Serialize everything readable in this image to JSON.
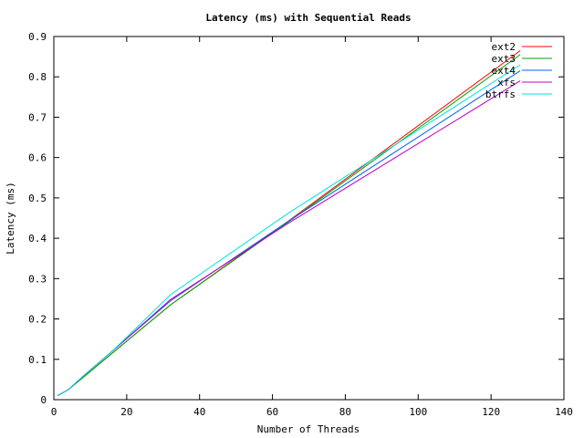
{
  "chart_data": {
    "type": "line",
    "title": "Latency (ms) with Sequential Reads",
    "xlabel": "Number of Threads",
    "ylabel": "Latency (ms)",
    "xlim": [
      0,
      140
    ],
    "ylim": [
      0,
      0.9
    ],
    "xticks": [
      "0",
      "20",
      "40",
      "60",
      "80",
      "100",
      "120",
      "140"
    ],
    "yticks": [
      "0",
      "0.1",
      "0.2",
      "0.3",
      "0.4",
      "0.5",
      "0.6",
      "0.7",
      "0.8",
      "0.9"
    ],
    "grid": false,
    "legend": "top-right",
    "series": [
      {
        "name": "ext2",
        "color": "#ff0000",
        "points": [
          [
            1,
            0.01
          ],
          [
            2,
            0.015
          ],
          [
            4,
            0.025
          ],
          [
            8,
            0.055
          ],
          [
            16,
            0.115
          ],
          [
            32,
            0.235
          ],
          [
            64,
            0.44
          ],
          [
            128,
            0.865
          ]
        ]
      },
      {
        "name": "ext3",
        "color": "#00a000",
        "points": [
          [
            1,
            0.01
          ],
          [
            2,
            0.015
          ],
          [
            4,
            0.025
          ],
          [
            8,
            0.055
          ],
          [
            16,
            0.115
          ],
          [
            32,
            0.235
          ],
          [
            64,
            0.438
          ],
          [
            128,
            0.855
          ]
        ]
      },
      {
        "name": "ext4",
        "color": "#0060ff",
        "points": [
          [
            1,
            0.01
          ],
          [
            2,
            0.015
          ],
          [
            4,
            0.025
          ],
          [
            8,
            0.058
          ],
          [
            16,
            0.12
          ],
          [
            32,
            0.245
          ],
          [
            64,
            0.44
          ],
          [
            128,
            0.815
          ]
        ]
      },
      {
        "name": "xfs",
        "color": "#c000c0",
        "points": [
          [
            1,
            0.01
          ],
          [
            2,
            0.015
          ],
          [
            4,
            0.025
          ],
          [
            8,
            0.058
          ],
          [
            16,
            0.12
          ],
          [
            32,
            0.248
          ],
          [
            64,
            0.435
          ],
          [
            128,
            0.79
          ]
        ]
      },
      {
        "name": "btrfs",
        "color": "#00e0e0",
        "points": [
          [
            1,
            0.01
          ],
          [
            2,
            0.015
          ],
          [
            4,
            0.025
          ],
          [
            8,
            0.058
          ],
          [
            16,
            0.12
          ],
          [
            32,
            0.26
          ],
          [
            64,
            0.46
          ],
          [
            128,
            0.83
          ]
        ]
      }
    ]
  }
}
